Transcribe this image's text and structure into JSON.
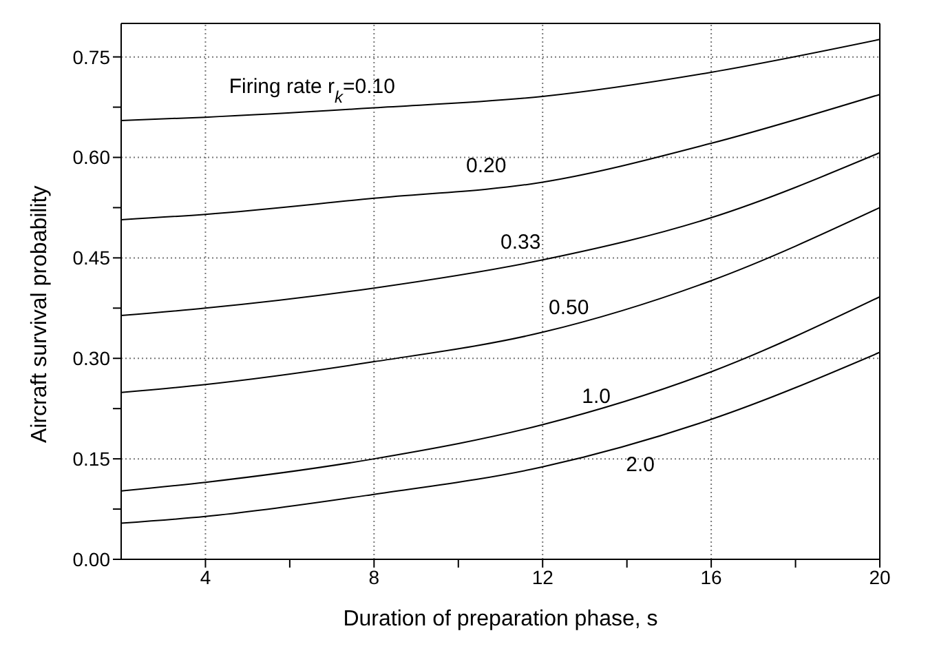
{
  "chart_data": {
    "type": "line",
    "xlabel": "Duration of preparation phase, s",
    "ylabel": "Aircraft survival probability",
    "x": [
      2,
      4,
      8,
      12,
      16,
      20
    ],
    "series": [
      {
        "name": "Firing rate r$_{k}$=0.10",
        "color": "#000000",
        "values": [
          0.655,
          0.66,
          0.674,
          0.691,
          0.727,
          0.776
        ]
      },
      {
        "name": "0.20",
        "color": "#000000",
        "values": [
          0.507,
          0.515,
          0.539,
          0.563,
          0.621,
          0.694
        ]
      },
      {
        "name": "0.33",
        "color": "#000000",
        "values": [
          0.364,
          0.375,
          0.405,
          0.447,
          0.51,
          0.607
        ]
      },
      {
        "name": "0.50",
        "color": "#000000",
        "values": [
          0.249,
          0.261,
          0.295,
          0.339,
          0.416,
          0.525
        ]
      },
      {
        "name": "1.0",
        "color": "#000000",
        "values": [
          0.102,
          0.115,
          0.15,
          0.201,
          0.28,
          0.392
        ]
      },
      {
        "name": "2.0",
        "color": "#000000",
        "values": [
          0.054,
          0.064,
          0.097,
          0.138,
          0.209,
          0.309
        ]
      }
    ],
    "xlim": [
      2,
      20
    ],
    "xticks": [
      4,
      {
        "value": 6,
        "label": null
      },
      8,
      {
        "value": 10,
        "label": null
      },
      12,
      {
        "value": 14,
        "label": null
      },
      16,
      {
        "value": 18,
        "label": null
      },
      20
    ],
    "ylim": [
      0,
      0.8
    ],
    "yticks": [
      {
        "value": 0,
        "label": "0.00"
      },
      {
        "value": 0.075,
        "label": null
      },
      {
        "value": 0.15,
        "label": "0.15"
      },
      {
        "value": 0.225,
        "label": null
      },
      {
        "value": 0.3,
        "label": "0.30"
      },
      {
        "value": 0.375,
        "label": null
      },
      {
        "value": 0.45,
        "label": "0.45"
      },
      {
        "value": 0.525,
        "label": null
      },
      {
        "value": 0.6,
        "label": "0.60"
      },
      {
        "value": 0.675,
        "label": null
      },
      {
        "value": 0.75,
        "label": "0.75"
      }
    ],
    "grid": true,
    "legend": false,
    "marker": "none",
    "line_style": "solid"
  }
}
